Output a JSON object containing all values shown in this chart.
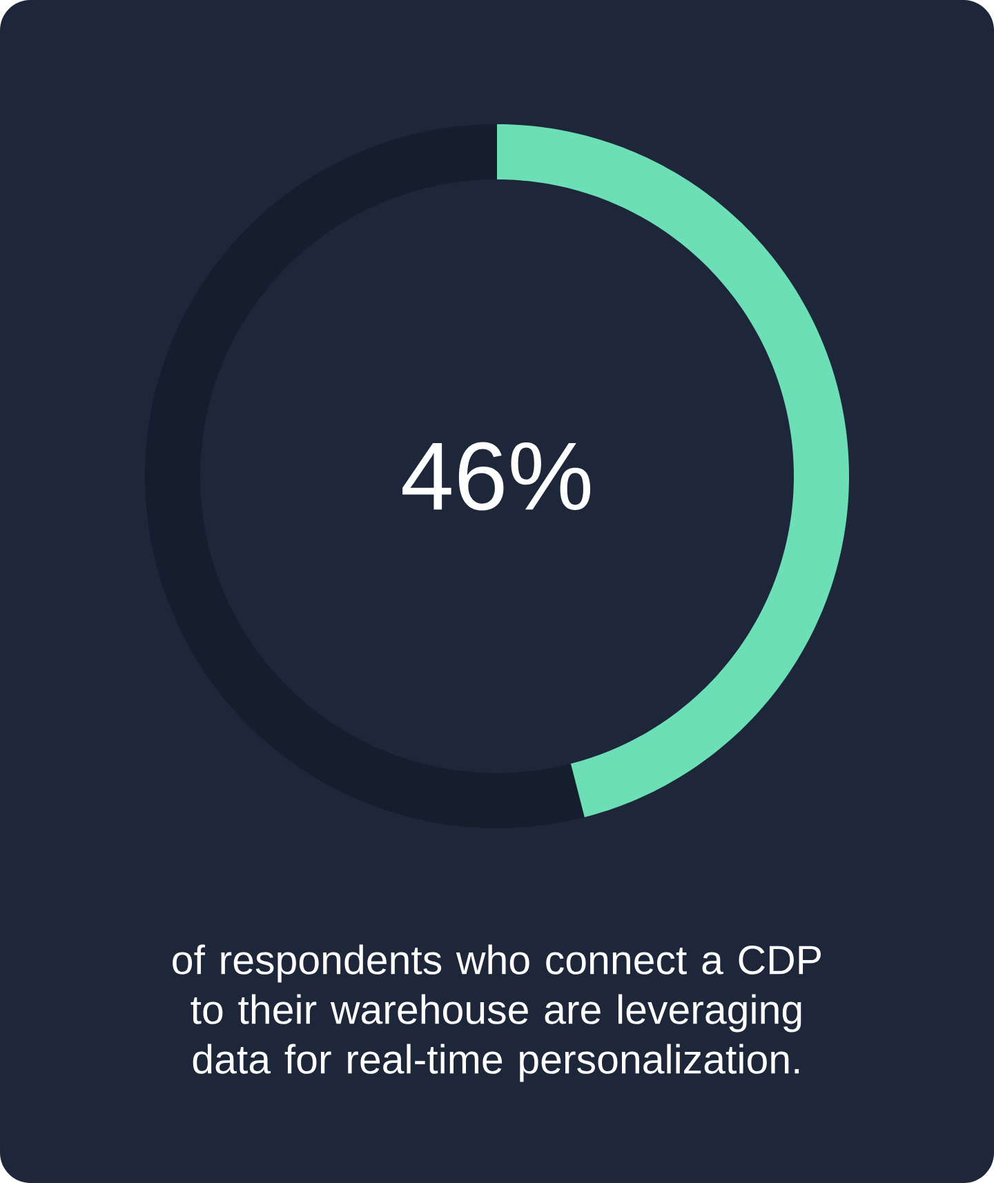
{
  "chart_data": {
    "type": "donut",
    "categories": [
      null,
      null
    ],
    "values": [
      46,
      54
    ],
    "colors": [
      "#6ddfb6",
      "#151e2c"
    ],
    "annotations": [
      "46%",
      "of respondents who connect a CDP to their warehouse are leveraging data for real-time personalization."
    ]
  }
}
